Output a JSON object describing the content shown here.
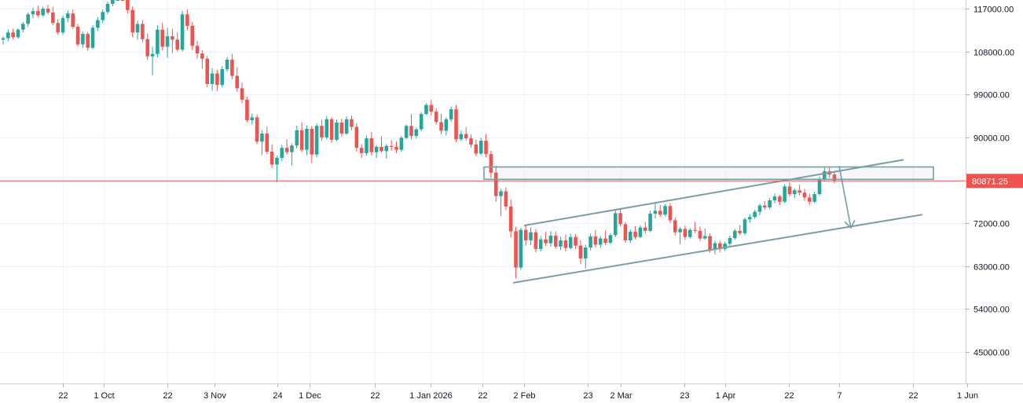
{
  "chart_data": {
    "type": "candlestick",
    "y_axis_labels": [
      "117000.00",
      "108000.00",
      "99000.00",
      "90000.00",
      "72000.00",
      "63000.00",
      "54000.00",
      "45000.00"
    ],
    "x_axis_labels": [
      "22",
      "1 Oct",
      "22",
      "3 Nov",
      "24",
      "1 Dec",
      "22",
      "1 Jan 2026",
      "22",
      "2 Feb",
      "23",
      "2 Mar",
      "23",
      "1 Apr",
      "22",
      "7",
      "22",
      "1 Jun"
    ],
    "last_price_label": "80871.25",
    "last_price": 80871.25,
    "ylim": [
      42000,
      118500
    ],
    "grid": true,
    "colors": {
      "up": "#26a69a",
      "down": "#ef5350",
      "drawing": "#7a9ea3",
      "price_line": "#ef5350",
      "grid": "#f0f3fa",
      "axis_text": "#131722"
    },
    "annotations": {
      "resistance_zone": {
        "top": 83800,
        "bottom": 81200
      },
      "channel_upper": {
        "from_price": 71500,
        "to_price": 85300
      },
      "channel_lower": {
        "from_price": 59500,
        "to_price": 73800
      },
      "down_arrow": {
        "from_price": 84000,
        "to_price": 71000
      }
    },
    "candles": [
      [
        110500,
        111200,
        109500,
        110800
      ],
      [
        110800,
        112600,
        110200,
        112000
      ],
      [
        112000,
        112800,
        110500,
        111000
      ],
      [
        111000,
        112900,
        110700,
        112600
      ],
      [
        112600,
        114200,
        112000,
        113800
      ],
      [
        113800,
        116200,
        113200,
        115800
      ],
      [
        115800,
        117200,
        115000,
        116500
      ],
      [
        116500,
        117600,
        115200,
        115600
      ],
      [
        115600,
        117400,
        115300,
        117000
      ],
      [
        117000,
        117800,
        115800,
        116200
      ],
      [
        116200,
        117300,
        113500,
        114000
      ],
      [
        114000,
        114800,
        111500,
        112000
      ],
      [
        112000,
        115500,
        111500,
        115000
      ],
      [
        115000,
        116600,
        114100,
        116000
      ],
      [
        116000,
        116800,
        112800,
        113200
      ],
      [
        113200,
        113800,
        109000,
        109500
      ],
      [
        109500,
        112200,
        108800,
        111700
      ],
      [
        111700,
        112100,
        108200,
        108800
      ],
      [
        108800,
        113500,
        108500,
        113000
      ],
      [
        113000,
        115200,
        112300,
        114600
      ],
      [
        114600,
        116800,
        114000,
        116300
      ],
      [
        116300,
        118500,
        115800,
        118000
      ],
      [
        118000,
        122600,
        117500,
        122000
      ],
      [
        122000,
        125000,
        121500,
        124200
      ],
      [
        124200,
        126300,
        119500,
        121000
      ],
      [
        121000,
        122000,
        116000,
        116700
      ],
      [
        116700,
        117500,
        111000,
        112000
      ],
      [
        112000,
        114500,
        110500,
        113800
      ],
      [
        113800,
        114600,
        110000,
        110600
      ],
      [
        110600,
        111800,
        106200,
        107000
      ],
      [
        107000,
        109000,
        103000,
        107500
      ],
      [
        107500,
        113500,
        106800,
        112600
      ],
      [
        112600,
        114000,
        108200,
        109000
      ],
      [
        109000,
        113000,
        106700,
        111200
      ],
      [
        111200,
        112800,
        107700,
        110500
      ],
      [
        110500,
        112000,
        108000,
        108400
      ],
      [
        108400,
        116500,
        108000,
        115800
      ],
      [
        115800,
        116800,
        112500,
        113400
      ],
      [
        113400,
        114200,
        108300,
        109200
      ],
      [
        109200,
        110200,
        106500,
        107600
      ],
      [
        107600,
        108300,
        104400,
        106500
      ],
      [
        106500,
        107100,
        100500,
        101200
      ],
      [
        101200,
        104500,
        99800,
        103400
      ],
      [
        103400,
        104200,
        99700,
        101000
      ],
      [
        101000,
        105000,
        100500,
        104300
      ],
      [
        104300,
        106800,
        103800,
        106300
      ],
      [
        106300,
        107500,
        102200,
        102900
      ],
      [
        102900,
        104700,
        99600,
        100300
      ],
      [
        100300,
        101500,
        97200,
        97900
      ],
      [
        97900,
        98500,
        93200,
        93600
      ],
      [
        93600,
        95000,
        92700,
        94200
      ],
      [
        94200,
        94800,
        88600,
        89100
      ],
      [
        89100,
        91500,
        86300,
        90800
      ],
      [
        90800,
        92300,
        86500,
        87000
      ],
      [
        87000,
        88500,
        83500,
        84300
      ],
      [
        84300,
        86200,
        80600,
        85700
      ],
      [
        85700,
        88400,
        85000,
        87800
      ],
      [
        87800,
        89600,
        86400,
        86900
      ],
      [
        86900,
        88700,
        84100,
        88300
      ],
      [
        88300,
        92500,
        87700,
        91500
      ],
      [
        91500,
        93200,
        86900,
        87400
      ],
      [
        87400,
        92500,
        86300,
        91800
      ],
      [
        91800,
        92400,
        84600,
        86400
      ],
      [
        86400,
        92900,
        85800,
        92400
      ],
      [
        92400,
        93700,
        89300,
        90000
      ],
      [
        90000,
        94500,
        89600,
        93800
      ],
      [
        93800,
        94200,
        88900,
        89500
      ],
      [
        89500,
        93700,
        89200,
        93100
      ],
      [
        93100,
        93900,
        90200,
        90800
      ],
      [
        90800,
        94400,
        90500,
        93800
      ],
      [
        93800,
        94600,
        91500,
        92200
      ],
      [
        92200,
        93000,
        87000,
        87800
      ],
      [
        87800,
        88600,
        85700,
        86700
      ],
      [
        86700,
        90400,
        86200,
        89800
      ],
      [
        89800,
        91100,
        86200,
        86900
      ],
      [
        86900,
        88400,
        85700,
        88000
      ],
      [
        88000,
        90200,
        86800,
        87100
      ],
      [
        87100,
        88600,
        85500,
        88200
      ],
      [
        88200,
        89400,
        87200,
        88000
      ],
      [
        88000,
        89200,
        86700,
        87400
      ],
      [
        87400,
        90300,
        87000,
        89900
      ],
      [
        89900,
        92700,
        89600,
        92400
      ],
      [
        92400,
        94900,
        89600,
        90300
      ],
      [
        90300,
        92100,
        89700,
        91700
      ],
      [
        91700,
        95300,
        91300,
        94900
      ],
      [
        94900,
        97100,
        94700,
        96800
      ],
      [
        96800,
        97900,
        94600,
        95400
      ],
      [
        95400,
        96100,
        92700,
        93200
      ],
      [
        93200,
        94900,
        90700,
        91400
      ],
      [
        91400,
        94200,
        90400,
        93800
      ],
      [
        93800,
        96500,
        93300,
        95900
      ],
      [
        95900,
        96800,
        89000,
        89600
      ],
      [
        89600,
        91500,
        89200,
        90700
      ],
      [
        90700,
        92100,
        89300,
        89800
      ],
      [
        89800,
        90600,
        87800,
        88500
      ],
      [
        88500,
        89500,
        86000,
        86600
      ],
      [
        86600,
        89900,
        86300,
        89300
      ],
      [
        89300,
        90700,
        85800,
        86500
      ],
      [
        86500,
        87200,
        81500,
        82600
      ],
      [
        82600,
        84100,
        76500,
        77700
      ],
      [
        77700,
        79200,
        73500,
        78700
      ],
      [
        78700,
        79500,
        74800,
        75500
      ],
      [
        75500,
        77000,
        69000,
        70300
      ],
      [
        70300,
        71200,
        60400,
        62700
      ],
      [
        62700,
        71000,
        62200,
        70600
      ],
      [
        70600,
        71600,
        67300,
        68400
      ],
      [
        68400,
        71100,
        67400,
        70100
      ],
      [
        70100,
        70800,
        65900,
        66600
      ],
      [
        66600,
        69300,
        66100,
        68600
      ],
      [
        68600,
        70200,
        67200,
        67800
      ],
      [
        67800,
        70300,
        67100,
        69400
      ],
      [
        69400,
        70300,
        66600,
        67100
      ],
      [
        67100,
        69200,
        66400,
        68400
      ],
      [
        68400,
        69600,
        66100,
        66800
      ],
      [
        66800,
        69800,
        66500,
        69100
      ],
      [
        69100,
        69700,
        66600,
        67300
      ],
      [
        67300,
        68400,
        63400,
        64600
      ],
      [
        64600,
        67500,
        62500,
        66900
      ],
      [
        66900,
        69800,
        66300,
        69200
      ],
      [
        69200,
        70600,
        66900,
        67500
      ],
      [
        67500,
        69300,
        66800,
        68800
      ],
      [
        68800,
        70400,
        67400,
        67900
      ],
      [
        67900,
        69900,
        67600,
        69500
      ],
      [
        69500,
        74700,
        69100,
        74100
      ],
      [
        74100,
        74900,
        71300,
        71800
      ],
      [
        71800,
        72200,
        67900,
        68400
      ],
      [
        68400,
        70700,
        67900,
        70200
      ],
      [
        70200,
        71400,
        68600,
        69100
      ],
      [
        69100,
        71600,
        68900,
        71100
      ],
      [
        71100,
        72300,
        69800,
        70400
      ],
      [
        70400,
        74600,
        70100,
        74000
      ],
      [
        74000,
        76400,
        73000,
        74600
      ],
      [
        74600,
        75800,
        73300,
        73800
      ],
      [
        73800,
        76000,
        73500,
        75600
      ],
      [
        75600,
        76200,
        72000,
        72600
      ],
      [
        72600,
        73200,
        69400,
        70100
      ],
      [
        70100,
        71200,
        67600,
        70800
      ],
      [
        70800,
        71500,
        68500,
        69100
      ],
      [
        69100,
        71000,
        68800,
        70600
      ],
      [
        70600,
        72300,
        69900,
        70400
      ],
      [
        70400,
        71300,
        68200,
        68800
      ],
      [
        68800,
        70900,
        68500,
        69300
      ],
      [
        69300,
        69900,
        65800,
        66400
      ],
      [
        66400,
        68300,
        65500,
        67800
      ],
      [
        67800,
        68300,
        65900,
        66600
      ],
      [
        66600,
        68100,
        66200,
        67700
      ],
      [
        67700,
        69400,
        67300,
        68900
      ],
      [
        68900,
        70800,
        68500,
        70400
      ],
      [
        70400,
        71600,
        69500,
        69900
      ],
      [
        69900,
        73200,
        69500,
        72800
      ],
      [
        72800,
        73900,
        72100,
        73300
      ],
      [
        73300,
        74800,
        72900,
        74400
      ],
      [
        74400,
        76100,
        73700,
        75700
      ],
      [
        75700,
        76700,
        74800,
        75300
      ],
      [
        75300,
        77300,
        74900,
        76800
      ],
      [
        76800,
        78200,
        76200,
        77600
      ],
      [
        77600,
        78000,
        75800,
        76500
      ],
      [
        76500,
        80200,
        76200,
        79700
      ],
      [
        79700,
        80600,
        77600,
        78100
      ],
      [
        78100,
        79300,
        77200,
        78900
      ],
      [
        78900,
        80100,
        77800,
        78400
      ],
      [
        78400,
        79200,
        76700,
        77400
      ],
      [
        77400,
        78200,
        75900,
        76500
      ],
      [
        76500,
        78600,
        76200,
        78100
      ],
      [
        78100,
        81800,
        77800,
        81300
      ],
      [
        81300,
        83700,
        80800,
        82900
      ],
      [
        82900,
        83800,
        81500,
        82200
      ],
      [
        82200,
        82700,
        80400,
        80871
      ]
    ]
  }
}
